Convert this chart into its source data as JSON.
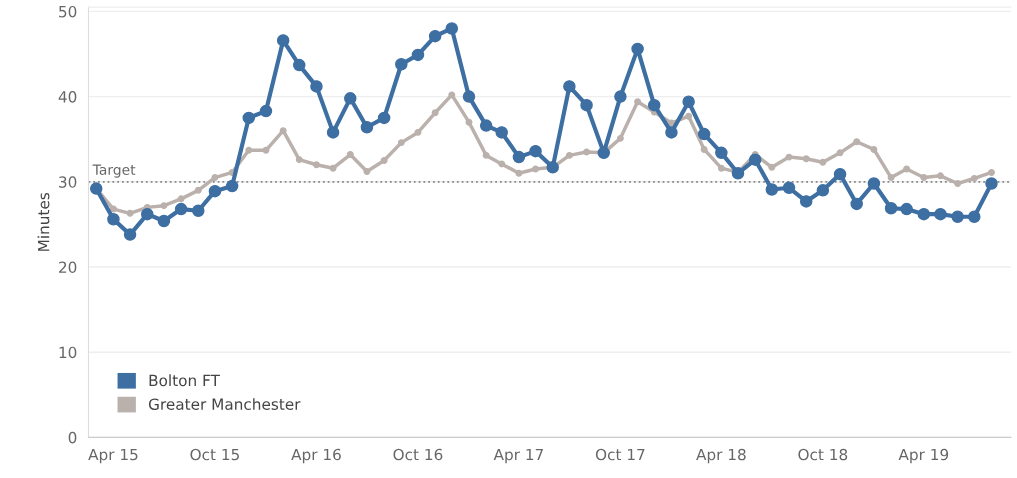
{
  "chart_data": {
    "type": "line",
    "ylabel": "Minutes",
    "x": [
      "2015-03",
      "2015-04",
      "2015-05",
      "2015-06",
      "2015-07",
      "2015-08",
      "2015-09",
      "2015-10",
      "2015-11",
      "2015-12",
      "2016-01",
      "2016-02",
      "2016-03",
      "2016-04",
      "2016-05",
      "2016-06",
      "2016-07",
      "2016-08",
      "2016-09",
      "2016-10",
      "2016-11",
      "2016-12",
      "2017-01",
      "2017-02",
      "2017-03",
      "2017-04",
      "2017-05",
      "2017-06",
      "2017-07",
      "2017-08",
      "2017-09",
      "2017-10",
      "2017-11",
      "2017-12",
      "2018-01",
      "2018-02",
      "2018-03",
      "2018-04",
      "2018-05",
      "2018-06",
      "2018-07",
      "2018-08",
      "2018-09",
      "2018-10",
      "2018-11",
      "2018-12",
      "2019-01",
      "2019-02",
      "2019-03",
      "2019-04",
      "2019-05",
      "2019-06",
      "2019-07",
      "2019-08"
    ],
    "series": [
      {
        "name": "Bolton FT",
        "color": "#3e6fa3",
        "marker": "circle",
        "values": [
          29.2,
          25.6,
          23.8,
          26.2,
          25.4,
          26.8,
          26.6,
          28.9,
          29.5,
          37.5,
          38.3,
          46.6,
          43.7,
          41.2,
          35.8,
          39.8,
          36.4,
          37.5,
          43.8,
          44.9,
          47.1,
          48.0,
          40.0,
          36.6,
          35.8,
          32.9,
          33.6,
          31.7,
          41.2,
          39.0,
          33.4,
          40.0,
          45.6,
          39.0,
          35.8,
          39.4,
          35.6,
          33.4,
          31.0,
          32.6,
          29.1,
          29.3,
          27.7,
          29.0,
          30.9,
          27.4,
          29.8,
          26.9,
          26.8,
          26.2,
          26.2,
          25.9,
          25.9,
          29.8
        ]
      },
      {
        "name": "Greater Manchester",
        "color": "#bab0ac",
        "marker": "circle",
        "values": [
          29.2,
          26.8,
          26.3,
          27.0,
          27.2,
          28.0,
          29.0,
          30.5,
          31.1,
          33.7,
          33.7,
          36.0,
          32.6,
          32.0,
          31.6,
          33.2,
          31.2,
          32.5,
          34.6,
          35.8,
          38.1,
          40.2,
          37.0,
          33.1,
          32.1,
          31.0,
          31.5,
          31.7,
          33.1,
          33.5,
          33.4,
          35.1,
          39.4,
          38.2,
          36.9,
          37.7,
          33.8,
          31.6,
          31.1,
          33.2,
          31.7,
          32.9,
          32.7,
          32.3,
          33.4,
          34.7,
          33.8,
          30.5,
          31.5,
          30.5,
          30.7,
          29.8,
          30.4,
          31.1
        ]
      }
    ],
    "xlim": [
      "2015-02-15",
      "2019-09-05"
    ],
    "xticks": [
      {
        "value": "2015-04",
        "label": "Apr 15"
      },
      {
        "value": "2015-10",
        "label": "Oct 15"
      },
      {
        "value": "2016-04",
        "label": "Apr 16"
      },
      {
        "value": "2016-10",
        "label": "Oct 16"
      },
      {
        "value": "2017-04",
        "label": "Apr 17"
      },
      {
        "value": "2017-10",
        "label": "Oct 17"
      },
      {
        "value": "2018-04",
        "label": "Apr 18"
      },
      {
        "value": "2018-10",
        "label": "Oct 18"
      },
      {
        "value": "2019-04",
        "label": "Apr 19"
      }
    ],
    "ylim": [
      0,
      50.5
    ],
    "yticks": [
      0,
      10,
      20,
      30,
      40,
      50
    ],
    "ref_lines": [
      {
        "axis": "y",
        "value": 30,
        "label": "Target",
        "color": "#888888",
        "line_style": "dotted"
      }
    ],
    "grid": "y",
    "legend": "bottom left"
  }
}
